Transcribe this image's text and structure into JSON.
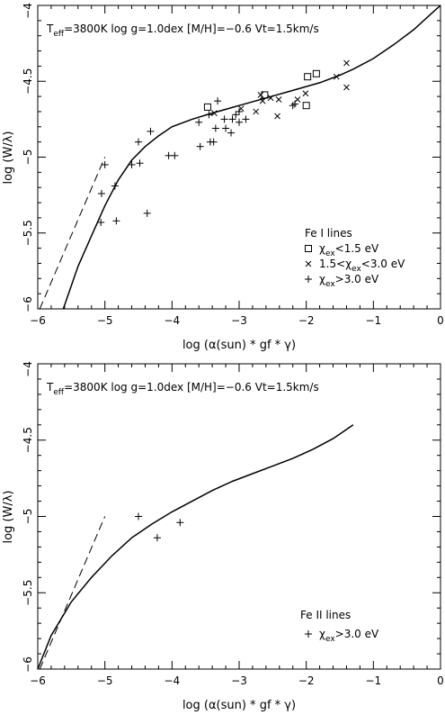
{
  "chart_data": [
    {
      "type": "scatter",
      "header": {
        "teff_main": "T",
        "teff_sub": "eff",
        "params": "=3800K  log g=1.0dex  [M/H]=−0.6  Vt=1.5km/s"
      },
      "xlabel": "log (α(sun) * gf * γ)",
      "ylabel": "log (W/λ)",
      "xlim": [
        -6,
        0
      ],
      "ylim": [
        -6,
        -4
      ],
      "xticks": [
        -6,
        -5,
        -4,
        -3,
        -2,
        -1,
        0
      ],
      "xtick_labels": [
        "−6",
        "−5",
        "−4",
        "−3",
        "−2",
        "−1",
        "0"
      ],
      "yticks": [
        -6,
        -5.5,
        -5,
        -4.5,
        -4
      ],
      "ytick_labels": [
        "−6",
        "−5.5",
        "−5",
        "−4.5",
        "−4"
      ],
      "legend": {
        "title": "Fe I lines",
        "entries": [
          {
            "marker": "square",
            "pre": "χ",
            "sub": "ex",
            "post": "<1.5 eV"
          },
          {
            "marker": "x",
            "pre": "1.5<χ",
            "sub": "ex",
            "post": "<3.0 eV"
          },
          {
            "marker": "plus",
            "pre": "χ",
            "sub": "ex",
            "post": ">3.0 eV"
          }
        ]
      },
      "model_curve": [
        [
          -5.62,
          -6.0
        ],
        [
          -5.4,
          -5.72
        ],
        [
          -5.2,
          -5.52
        ],
        [
          -5.0,
          -5.32
        ],
        [
          -4.8,
          -5.15
        ],
        [
          -4.6,
          -5.02
        ],
        [
          -4.4,
          -4.93
        ],
        [
          -4.2,
          -4.86
        ],
        [
          -4.0,
          -4.8
        ],
        [
          -3.7,
          -4.75
        ],
        [
          -3.4,
          -4.71
        ],
        [
          -3.0,
          -4.66
        ],
        [
          -2.6,
          -4.61
        ],
        [
          -2.2,
          -4.56
        ],
        [
          -1.8,
          -4.51
        ],
        [
          -1.5,
          -4.46
        ],
        [
          -1.3,
          -4.42
        ],
        [
          -1.0,
          -4.35
        ],
        [
          -0.7,
          -4.26
        ],
        [
          -0.4,
          -4.16
        ],
        [
          -0.1,
          -4.04
        ],
        [
          0.0,
          -4.0
        ]
      ],
      "linear_limit": [
        [
          -5.97,
          -6.0
        ],
        [
          -5.0,
          -5.0
        ]
      ],
      "series": [
        {
          "marker": "square",
          "points": [
            [
              -3.47,
              -4.67
            ],
            [
              -2.62,
              -4.59
            ],
            [
              -2.0,
              -4.66
            ],
            [
              -1.98,
              -4.47
            ],
            [
              -1.85,
              -4.45
            ]
          ]
        },
        {
          "marker": "x",
          "points": [
            [
              -2.68,
              -4.59
            ],
            [
              -2.65,
              -4.63
            ],
            [
              -2.53,
              -4.61
            ],
            [
              -2.41,
              -4.62
            ],
            [
              -2.75,
              -4.7
            ],
            [
              -2.97,
              -4.68
            ],
            [
              -3.37,
              -4.71
            ],
            [
              -2.43,
              -4.73
            ],
            [
              -2.13,
              -4.62
            ],
            [
              -2.01,
              -4.58
            ],
            [
              -1.55,
              -4.47
            ],
            [
              -1.4,
              -4.38
            ],
            [
              -1.4,
              -4.54
            ]
          ]
        },
        {
          "marker": "plus",
          "points": [
            [
              -5.06,
              -5.43
            ],
            [
              -5.05,
              -5.24
            ],
            [
              -5.0,
              -5.05
            ],
            [
              -4.85,
              -5.19
            ],
            [
              -4.83,
              -5.42
            ],
            [
              -4.6,
              -5.05
            ],
            [
              -4.5,
              -4.9
            ],
            [
              -4.48,
              -5.04
            ],
            [
              -4.37,
              -5.37
            ],
            [
              -4.32,
              -4.83
            ],
            [
              -4.05,
              -4.99
            ],
            [
              -3.96,
              -4.99
            ],
            [
              -3.6,
              -4.77
            ],
            [
              -3.58,
              -4.93
            ],
            [
              -3.45,
              -4.72
            ],
            [
              -3.43,
              -4.9
            ],
            [
              -3.38,
              -4.9
            ],
            [
              -3.32,
              -4.63
            ],
            [
              -3.35,
              -4.81
            ],
            [
              -3.22,
              -4.75
            ],
            [
              -3.2,
              -4.81
            ],
            [
              -3.12,
              -4.84
            ],
            [
              -3.1,
              -4.75
            ],
            [
              -3.05,
              -4.72
            ],
            [
              -3.0,
              -4.7
            ],
            [
              -2.9,
              -4.75
            ],
            [
              -2.2,
              -4.66
            ],
            [
              -2.17,
              -4.65
            ],
            [
              -3.0,
              -4.77
            ]
          ]
        }
      ]
    },
    {
      "type": "scatter",
      "header": {
        "teff_main": "T",
        "teff_sub": "eff",
        "params": "=3800K  log g=1.0dex  [M/H]=−0.6  Vt=1.5km/s"
      },
      "xlabel": "log (α(sun) * gf * γ)",
      "ylabel": "log (W/λ)",
      "xlim": [
        -6,
        0
      ],
      "ylim": [
        -6,
        -4
      ],
      "xticks": [
        -6,
        -5,
        -4,
        -3,
        -2,
        -1,
        0
      ],
      "xtick_labels": [
        "−6",
        "−5",
        "−4",
        "−3",
        "−2",
        "−1",
        "0"
      ],
      "yticks": [
        -6,
        -5.5,
        -5,
        -4.5,
        -4
      ],
      "ytick_labels": [
        "−6",
        "−5.5",
        "−5",
        "−4.5",
        "−4"
      ],
      "legend": {
        "title": "Fe II lines",
        "entries": [
          {
            "marker": "plus",
            "pre": "χ",
            "sub": "ex",
            "post": ">3.0 eV"
          }
        ]
      },
      "model_curve": [
        [
          -6.0,
          -6.0
        ],
        [
          -5.8,
          -5.78
        ],
        [
          -5.5,
          -5.56
        ],
        [
          -5.2,
          -5.4
        ],
        [
          -4.9,
          -5.26
        ],
        [
          -4.6,
          -5.14
        ],
        [
          -4.3,
          -5.05
        ],
        [
          -4.0,
          -4.97
        ],
        [
          -3.7,
          -4.9
        ],
        [
          -3.4,
          -4.83
        ],
        [
          -3.1,
          -4.77
        ],
        [
          -2.8,
          -4.72
        ],
        [
          -2.5,
          -4.67
        ],
        [
          -2.2,
          -4.62
        ],
        [
          -1.9,
          -4.56
        ],
        [
          -1.6,
          -4.49
        ],
        [
          -1.3,
          -4.4
        ]
      ],
      "linear_limit": [
        [
          -5.97,
          -6.0
        ],
        [
          -5.0,
          -5.0
        ]
      ],
      "series": [
        {
          "marker": "plus",
          "points": [
            [
              -4.5,
              -5.0
            ],
            [
              -4.22,
              -5.14
            ],
            [
              -3.88,
              -5.04
            ]
          ]
        }
      ]
    }
  ]
}
